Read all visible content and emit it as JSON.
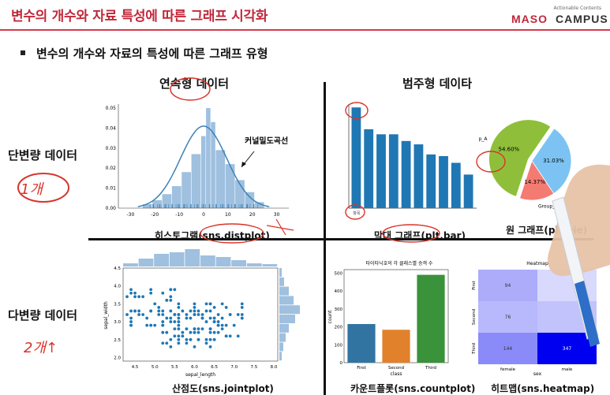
{
  "header": {
    "title": "변수의 개수와 자료 특성에 따른 그래프 시각화",
    "logo": {
      "tagline": "Actionable Contents",
      "brand_a": "MASO",
      "brand_b": "CAMPUS"
    }
  },
  "bullet": "변수의 개수와 자료의 특성에 따른 그래프 유형",
  "columns": {
    "continuous": "연속형 데이터",
    "categorical": "범주형 데이타"
  },
  "rows": {
    "univariate": "단변량 데이터",
    "multivariate": "다변량 데이터"
  },
  "captions": {
    "hist": "히스토그램(sns.distplot)",
    "bar": "막대 그래프(plt.bar)",
    "pie": "원 그래프(plt.pie)",
    "scatter": "산점도(sns.jointplot)",
    "count": "카운트플롯(sns.countplot)",
    "heatmap": "히트맵(sns.heatmap)"
  },
  "annotations": {
    "kde_label": "커널밀도곡선",
    "hand_1": "1개",
    "hand_2": "2개↑"
  },
  "colors": {
    "accent": "#c0283a",
    "bar_blue": "#1f77b4",
    "hist_blue": "#9fc0df",
    "pie_green": "#8fbf3a",
    "pie_blue": "#7cc3f3",
    "pie_red": "#f47b72",
    "count_blue": "#3274a1",
    "count_orange": "#e1812c",
    "count_green": "#3a923a",
    "annot_red": "#d9342b"
  },
  "chart_data": [
    {
      "id": "hist",
      "type": "bar",
      "x_ticks": [
        -30,
        -20,
        -10,
        0,
        10,
        20,
        30
      ],
      "y_ticks": [
        0.0,
        0.01,
        0.02,
        0.03,
        0.04,
        0.05
      ],
      "xlim": [
        -35,
        35
      ],
      "ylim": [
        0,
        0.052
      ],
      "bin_edges": [
        -25,
        -21,
        -17,
        -13,
        -9,
        -5,
        -1,
        1,
        3,
        5,
        9,
        13,
        17,
        21,
        25
      ],
      "values": [
        0.002,
        0.004,
        0.007,
        0.011,
        0.018,
        0.027,
        0.036,
        0.05,
        0.043,
        0.029,
        0.022,
        0.014,
        0.008,
        0.003
      ],
      "kde_peak": 0.041
    },
    {
      "id": "bar",
      "type": "bar",
      "categories": [
        "항목",
        "",
        "",
        "",
        "",
        "",
        "",
        "",
        "",
        ""
      ],
      "values": [
        60,
        47,
        44,
        44,
        40,
        38,
        32,
        31,
        27,
        20
      ],
      "ylim": [
        0,
        62
      ]
    },
    {
      "id": "pie",
      "type": "pie",
      "labels": [
        "Group_A",
        "",
        "Group_C"
      ],
      "values": [
        54.6,
        31.03,
        14.37
      ],
      "value_labels": [
        "54.60%",
        "31.03%",
        "14.37%"
      ]
    },
    {
      "id": "scatter",
      "type": "scatter",
      "xlabel": "sepal_length",
      "ylabel": "sepal_width",
      "x_ticks": [
        "4.5",
        "5.0",
        "5.5",
        "6.0",
        "6.5",
        "7.0",
        "7.5",
        "8.0"
      ],
      "y_ticks": [
        "2.0",
        "2.5",
        "3.0",
        "3.5",
        "4.0",
        "4.5"
      ],
      "xlim": [
        4.2,
        8.1
      ],
      "ylim": [
        1.9,
        4.5
      ]
    },
    {
      "id": "count",
      "type": "bar",
      "title": "타이타닉호의 각 클래스별 승객 수",
      "xlabel": "class",
      "ylabel": "count",
      "categories": [
        "First",
        "Second",
        "Third"
      ],
      "values": [
        216,
        184,
        491
      ],
      "y_ticks": [
        0,
        100,
        200,
        300,
        400,
        500
      ],
      "ylim": [
        0,
        520
      ]
    },
    {
      "id": "heatmap",
      "type": "heatmap",
      "title": "Heatmap",
      "xlabel": "sex",
      "x_categories": [
        "female",
        "male"
      ],
      "y_categories": [
        "First",
        "Second",
        "Third"
      ],
      "values": [
        [
          94,
          null
        ],
        [
          76,
          null
        ],
        [
          144,
          347
        ]
      ]
    }
  ]
}
